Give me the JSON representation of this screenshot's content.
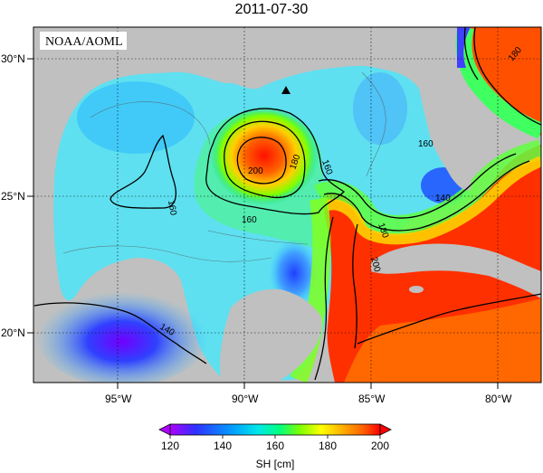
{
  "title": "2011-07-30",
  "credit": "NOAA/AOML",
  "lat_labels": [
    "30°N",
    "25°N",
    "20°N"
  ],
  "lon_labels": [
    "95°W",
    "90°W",
    "85°W",
    "80°W"
  ],
  "contour_labels": [
    "160",
    "200",
    "180",
    "160",
    "160",
    "160",
    "140",
    "180",
    "200",
    "140",
    "180"
  ],
  "colorbar": {
    "label": "SH [cm]",
    "ticks": [
      "120",
      "140",
      "160",
      "180",
      "200"
    ],
    "colors": [
      "#b000ff",
      "#3030ff",
      "#00a0ff",
      "#00e8e8",
      "#00ff80",
      "#80ff00",
      "#ffff00",
      "#ffb000",
      "#ff6000",
      "#ff0000"
    ]
  },
  "land_color": "#c0c0c0"
}
